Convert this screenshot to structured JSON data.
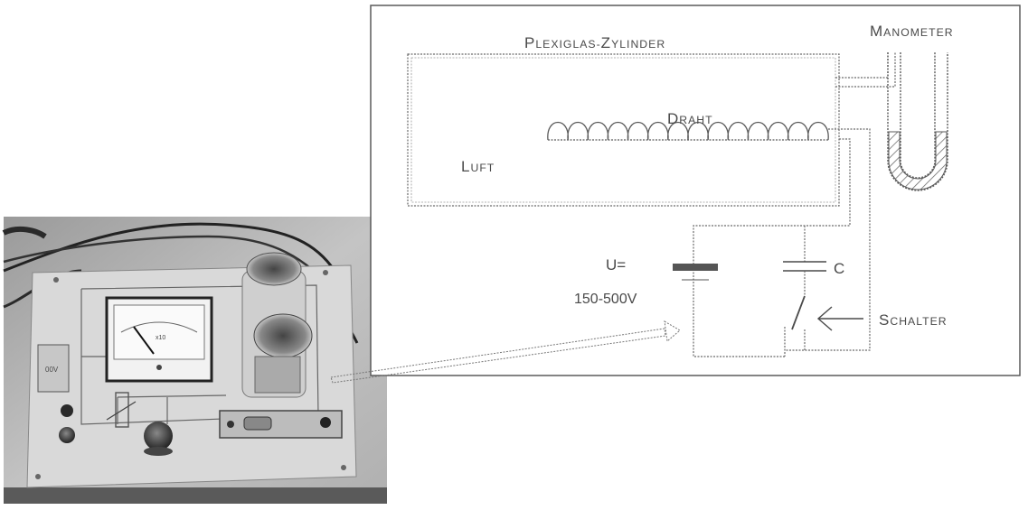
{
  "labels": {
    "plexiglas": "Plexiglas-Zylinder",
    "manometer": "Manometer",
    "draht": "Draht",
    "luft": "Luft",
    "u_symbol": "U=",
    "voltage_range": "150-500V",
    "capacitor": "C",
    "schalter": "Schalter"
  },
  "photo": {
    "meter_label": "x10",
    "module_label": "00V"
  },
  "colors": {
    "line": "#5a5a5a",
    "text": "#4a4a4a",
    "battery": "#555555",
    "background": "#ffffff"
  }
}
